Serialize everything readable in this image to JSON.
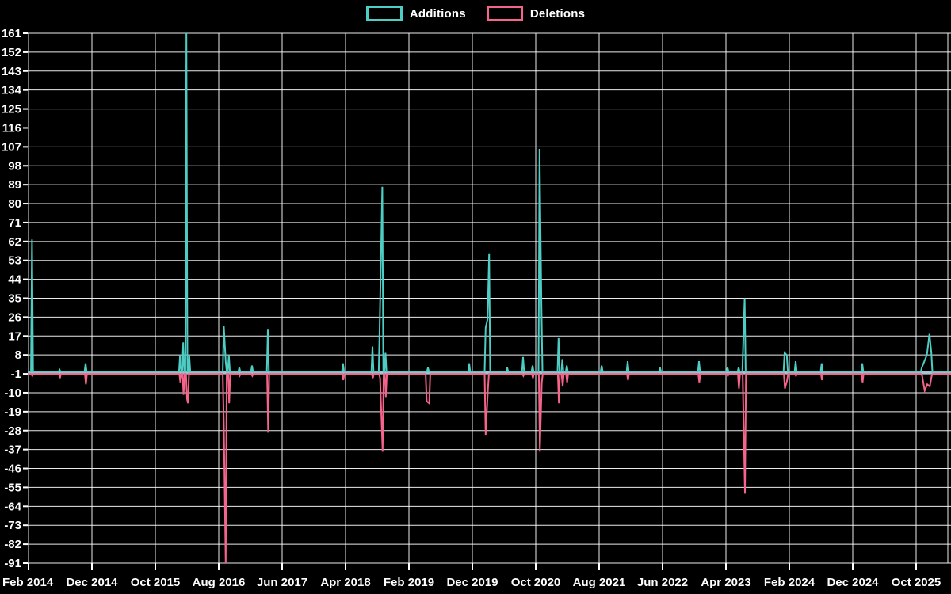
{
  "legend": {
    "items": [
      {
        "label": "Additions",
        "color": "#4ecdc4"
      },
      {
        "label": "Deletions",
        "color": "#f5658b"
      }
    ]
  },
  "colors": {
    "background": "#000000",
    "grid": "#ffffff",
    "text": "#ffffff",
    "additions": "#4ecdc4",
    "deletions": "#f5658b",
    "baseline_band": "#a9c3d2"
  },
  "chart_data": {
    "type": "line",
    "title": "",
    "legend_position": "top-center",
    "grid": true,
    "x_unit": "months since Feb 2014",
    "x_axis": {
      "tick_labels": [
        "Feb 2014",
        "Dec 2014",
        "Oct 2015",
        "Aug 2016",
        "Jun 2017",
        "Apr 2018",
        "Feb 2019",
        "Dec 2019",
        "Oct 2020",
        "Aug 2021",
        "Jun 2022",
        "Apr 2023",
        "Feb 2024",
        "Dec 2024",
        "Oct 2025"
      ],
      "tick_spacing_months": 10
    },
    "y_axis": {
      "ticks": [
        161,
        152,
        143,
        134,
        125,
        116,
        107,
        98,
        89,
        80,
        71,
        62,
        53,
        44,
        35,
        26,
        17,
        8,
        -1,
        -10,
        -19,
        -28,
        -37,
        -46,
        -55,
        -64,
        -73,
        -82,
        -91
      ],
      "min": -91,
      "max": 161,
      "step": 9
    },
    "baselines": {
      "additions": 0,
      "deletions": -1
    },
    "series": [
      {
        "name": "Additions",
        "color_key": "additions",
        "points": [
          [
            0.55,
            63
          ],
          [
            4.9,
            1
          ],
          [
            9,
            4
          ],
          [
            23.9,
            8
          ],
          [
            24.4,
            14
          ],
          [
            24.9,
            161
          ],
          [
            25.35,
            8
          ],
          [
            30.8,
            22
          ],
          [
            31.1,
            5
          ],
          [
            31.6,
            8
          ],
          [
            33.25,
            2
          ],
          [
            35.25,
            3
          ],
          [
            37.75,
            20
          ],
          [
            49.6,
            4
          ],
          [
            54.25,
            12
          ],
          [
            55.4,
            24
          ],
          [
            55.8,
            88
          ],
          [
            56.3,
            9
          ],
          [
            63,
            2
          ],
          [
            69.5,
            4
          ],
          [
            72.1,
            21
          ],
          [
            72.4,
            25
          ],
          [
            72.65,
            56
          ],
          [
            75.5,
            2
          ],
          [
            78,
            7
          ],
          [
            79.5,
            3
          ],
          [
            80.6,
            106
          ],
          [
            80.9,
            31
          ],
          [
            83.6,
            16
          ],
          [
            84.2,
            6
          ],
          [
            84.9,
            3
          ],
          [
            90.4,
            3
          ],
          [
            94.5,
            5
          ],
          [
            99.6,
            2
          ],
          [
            105.75,
            5
          ],
          [
            110.25,
            2
          ],
          [
            112,
            2
          ],
          [
            112.75,
            16
          ],
          [
            112.95,
            35
          ],
          [
            119.25,
            9
          ],
          [
            119.6,
            8
          ],
          [
            121,
            5
          ],
          [
            125.1,
            4
          ],
          [
            131.5,
            4
          ],
          [
            140.9,
            2
          ],
          [
            141.3,
            5
          ],
          [
            141.7,
            8
          ],
          [
            142.1,
            18
          ],
          [
            142.4,
            9
          ]
        ]
      },
      {
        "name": "Deletions",
        "color_key": "deletions",
        "points": [
          [
            0.6,
            -2
          ],
          [
            4.95,
            -3
          ],
          [
            9.05,
            -6
          ],
          [
            23.95,
            -5
          ],
          [
            24.45,
            -11
          ],
          [
            25.0,
            -13
          ],
          [
            25.15,
            -15
          ],
          [
            30.8,
            -25
          ],
          [
            31.1,
            -91
          ],
          [
            31.65,
            -15
          ],
          [
            33.3,
            -2
          ],
          [
            35.3,
            -2
          ],
          [
            37.8,
            -29
          ],
          [
            49.65,
            -4
          ],
          [
            54.3,
            -3
          ],
          [
            55.45,
            -3
          ],
          [
            55.85,
            -38
          ],
          [
            56.35,
            -12
          ],
          [
            62.8,
            -14
          ],
          [
            63.2,
            -15
          ],
          [
            72.1,
            -30
          ],
          [
            72.45,
            -9
          ],
          [
            78.05,
            -2
          ],
          [
            79.55,
            -3
          ],
          [
            80.65,
            -38
          ],
          [
            80.95,
            -5
          ],
          [
            83.65,
            -15
          ],
          [
            84.25,
            -7
          ],
          [
            84.95,
            -5
          ],
          [
            94.55,
            -4
          ],
          [
            105.8,
            -5
          ],
          [
            110.3,
            -2
          ],
          [
            112.05,
            -8
          ],
          [
            112.8,
            -27
          ],
          [
            113.0,
            -58
          ],
          [
            119.3,
            -8
          ],
          [
            119.65,
            -4
          ],
          [
            121.05,
            -2
          ],
          [
            125.15,
            -4
          ],
          [
            131.55,
            -5
          ],
          [
            140.95,
            -2
          ],
          [
            141.35,
            -9
          ],
          [
            141.75,
            -6
          ],
          [
            142.15,
            -7
          ],
          [
            142.45,
            -2
          ]
        ]
      }
    ]
  }
}
